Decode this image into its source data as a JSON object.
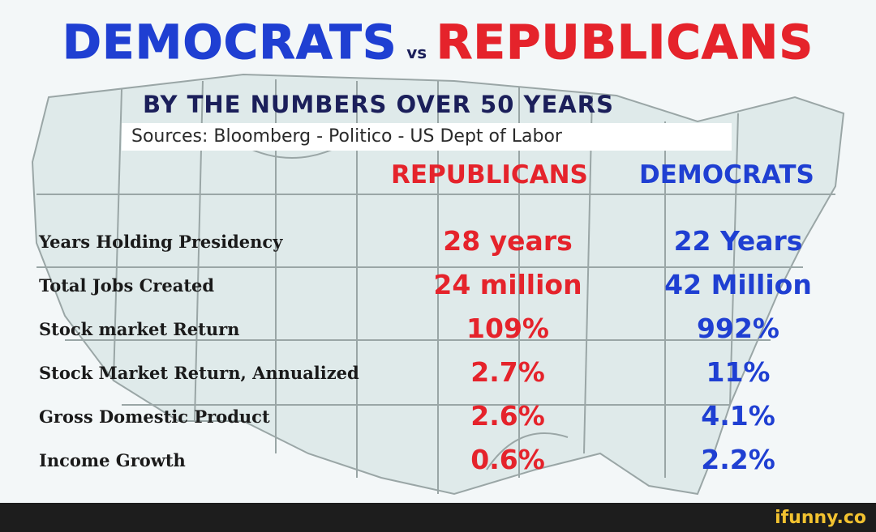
{
  "headline": {
    "democrats": "DEMOCRATS",
    "vs": "vs",
    "republicans": "REPUBLICANS"
  },
  "subheadline": "BY THE NUMBERS OVER 50 YEARS",
  "sources": "Sources:  Bloomberg - Politico - US Dept of Labor",
  "columns": {
    "republicans": "REPUBLICANS",
    "democrats": "DEMOCRATS"
  },
  "rows": [
    {
      "label": "Years Holding Presidency",
      "republicans": "28 years",
      "democrats": "22 Years"
    },
    {
      "label": "Total Jobs Created",
      "republicans": "24 million",
      "democrats": "42 Million"
    },
    {
      "label": "Stock market Return",
      "republicans": "109%",
      "democrats": "992%"
    },
    {
      "label": "Stock Market Return, Annualized",
      "republicans": "2.7%",
      "democrats": "11%"
    },
    {
      "label": "Gross Domestic Product",
      "republicans": "2.6%",
      "democrats": "4.1%"
    },
    {
      "label": "Income Growth",
      "republicans": "0.6%",
      "democrats": "2.2%"
    }
  ],
  "watermark": "ifunny.co",
  "colors": {
    "democrat_blue": "#1f3fd2",
    "republican_red": "#e5232b",
    "map_fill": "#dfeaea",
    "map_lines": "#9aa6a6"
  }
}
